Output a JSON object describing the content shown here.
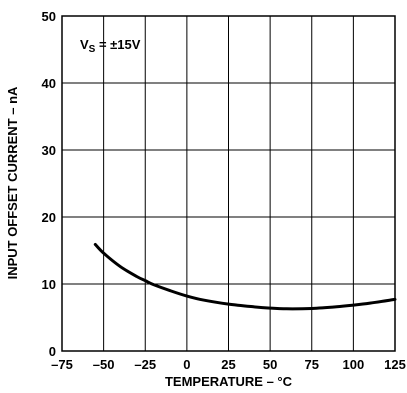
{
  "chart_data": {
    "type": "line",
    "xlabel": "TEMPERATURE – °C",
    "ylabel": "INPUT OFFSET CURRENT – nA",
    "xlim": [
      -75,
      125
    ],
    "ylim": [
      0,
      50
    ],
    "x_ticks": [
      -75,
      -50,
      -25,
      0,
      25,
      50,
      75,
      100,
      125
    ],
    "y_ticks": [
      0,
      10,
      20,
      30,
      40,
      50
    ],
    "grid": true,
    "annotation": {
      "prefix": "V",
      "subscript": "S",
      "suffix": " = ±15V"
    },
    "series": [
      {
        "x": [
          -55,
          -50,
          -40,
          -30,
          -25,
          -20,
          -10,
          0,
          10,
          25,
          40,
          50,
          60,
          75,
          90,
          100,
          110,
          125
        ],
        "values": [
          15.9,
          14.6,
          12.6,
          11.1,
          10.5,
          9.9,
          9.0,
          8.2,
          7.6,
          7.0,
          6.6,
          6.4,
          6.3,
          6.35,
          6.6,
          6.85,
          7.15,
          7.7
        ]
      }
    ]
  }
}
